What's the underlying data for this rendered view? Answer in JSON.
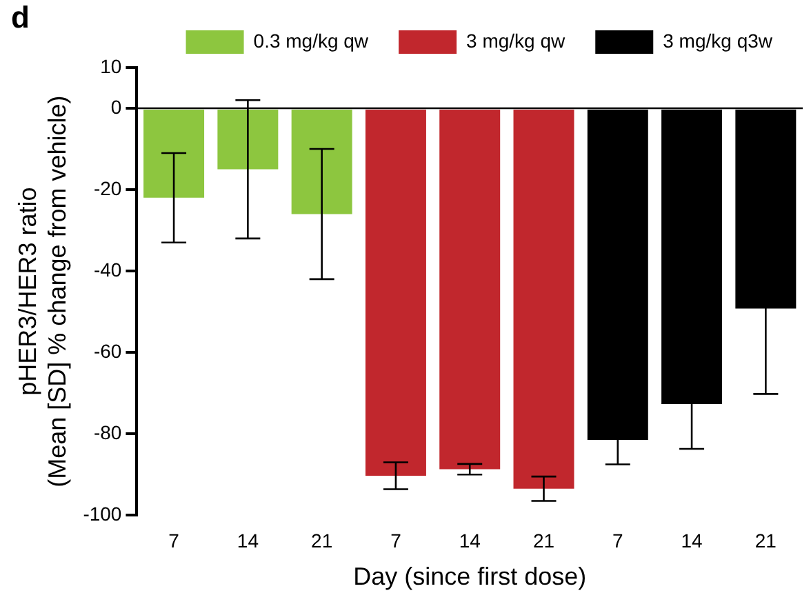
{
  "chart_data": {
    "type": "bar",
    "xlabel": "Day (since first dose)",
    "ylabel": "pHER3/HER3 ratio\n(Mean [SD] % change from vehicle)",
    "annotations": [
      "d"
    ],
    "categories": [
      "7",
      "14",
      "21",
      "7",
      "14",
      "21",
      "7",
      "14",
      "21"
    ],
    "series": [
      {
        "name": "0.3 mg/kg qw",
        "color": "#8dc63f",
        "values": [
          -22,
          -15,
          -26,
          null,
          null,
          null,
          null,
          null,
          null
        ],
        "errors": [
          11,
          17,
          16,
          null,
          null,
          null,
          null,
          null,
          null
        ]
      },
      {
        "name": "3 mg/kg qw",
        "color": "#c1272d",
        "values": [
          null,
          null,
          null,
          -90.3,
          -88.7,
          -93.5,
          null,
          null,
          null
        ],
        "errors": [
          null,
          null,
          null,
          3.3,
          1.3,
          3,
          null,
          null,
          null
        ]
      },
      {
        "name": "3 mg/kg q3w",
        "color": "#000000",
        "values": [
          null,
          null,
          null,
          null,
          null,
          null,
          -81.5,
          -72.7,
          -49.2
        ],
        "errors": [
          null,
          null,
          null,
          null,
          null,
          null,
          6,
          11,
          21
        ]
      }
    ],
    "ylim": [
      -100,
      10
    ],
    "yticks": [
      -100,
      -80,
      -60,
      -40,
      -20,
      0,
      10
    ],
    "legend": "top",
    "ref_lines": [
      {
        "axis": "y",
        "value": 0,
        "color": "#000000"
      }
    ]
  }
}
